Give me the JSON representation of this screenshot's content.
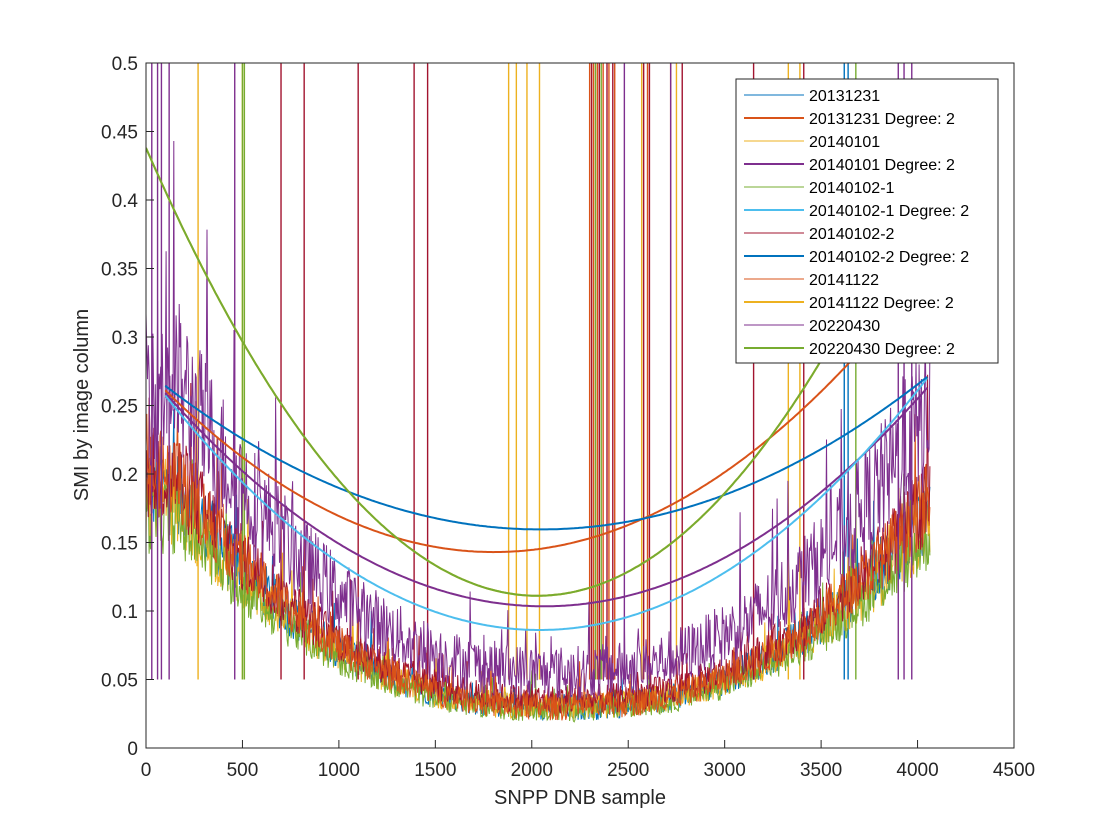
{
  "chart_data": {
    "type": "line",
    "title": "",
    "xlabel": "SNPP DNB sample",
    "ylabel": "SMI by image column",
    "xlim": [
      0,
      4500
    ],
    "ylim": [
      0,
      0.5
    ],
    "xticks": [
      0,
      500,
      1000,
      1500,
      2000,
      2500,
      3000,
      3500,
      4000,
      4500
    ],
    "yticks": [
      0,
      0.05,
      0.1,
      0.15,
      0.2,
      0.25,
      0.3,
      0.35,
      0.4,
      0.45,
      0.5
    ],
    "grid": false,
    "legend_position": "top-right",
    "series": [
      {
        "name": "20131231",
        "kind": "raw",
        "color": "#0072BD",
        "base": 0.03,
        "edge": 0.19,
        "noise": 0.01,
        "spikes": [
          3620,
          3640
        ]
      },
      {
        "name": "20131231 Degree: 2",
        "kind": "fit",
        "color": "#D95319",
        "coef": [
          0.2754,
          -0.0001468,
          4.07e-08
        ],
        "x_range": [
          100,
          4050
        ]
      },
      {
        "name": "20140101",
        "kind": "raw",
        "color": "#EDB120",
        "base": 0.03,
        "edge": 0.18,
        "noise": 0.01,
        "spikes": [
          270,
          500,
          1880,
          1920,
          1975,
          2040,
          2570,
          2750,
          3330,
          3390
        ]
      },
      {
        "name": "20140101 Degree: 2",
        "kind": "fit",
        "color": "#7E2F8E",
        "coef": [
          0.2754,
          -0.0001667,
          4.04e-08
        ],
        "x_range": [
          100,
          4050
        ]
      },
      {
        "name": "20140102-1",
        "kind": "raw",
        "color": "#77AC30",
        "base": 0.028,
        "edge": 0.17,
        "noise": 0.009,
        "spikes": [
          500,
          510,
          2330,
          2360,
          3680
        ]
      },
      {
        "name": "20140102-1 Degree: 2",
        "kind": "fit",
        "color": "#4DBEEE",
        "coef": [
          0.2754,
          -0.0001856,
          4.55e-08
        ],
        "x_range": [
          100,
          4050
        ]
      },
      {
        "name": "20140102-2",
        "kind": "raw",
        "color": "#A2142F",
        "base": 0.035,
        "edge": 0.2,
        "noise": 0.011,
        "spikes": [
          700,
          820,
          1100,
          1390,
          1460,
          2310,
          2350,
          2390,
          2420,
          2580,
          2610,
          2780,
          3150,
          3410
        ]
      },
      {
        "name": "20140102-2 Degree: 2",
        "kind": "fit",
        "color": "#0072BD",
        "coef": [
          0.2754,
          -0.0001133,
          2.77e-08
        ],
        "x_range": [
          100,
          4050
        ]
      },
      {
        "name": "20141122",
        "kind": "raw",
        "color": "#D95319",
        "base": 0.03,
        "edge": 0.2,
        "noise": 0.01,
        "spikes": [
          2300,
          2320,
          2340,
          2370,
          2400,
          2430,
          2600,
          2720
        ]
      },
      {
        "name": "20141122 Degree: 2",
        "kind": "fit",
        "color": "#EDB120",
        "coef": [
          0.438,
          -0.0003222,
          7.94e-08
        ],
        "x_range": [
          0,
          4050
        ]
      },
      {
        "name": "20220430",
        "kind": "raw",
        "color": "#7E2F8E",
        "base": 0.055,
        "edge": 0.27,
        "noise": 0.02,
        "spikes": [
          30,
          60,
          80,
          120,
          460,
          2480,
          2720,
          3900,
          3930,
          3970
        ]
      },
      {
        "name": "20220430 Degree: 2",
        "kind": "fit",
        "color": "#77AC30",
        "coef": [
          0.438,
          -0.0003222,
          7.94e-08
        ],
        "x_range": [
          0,
          4050
        ]
      }
    ]
  }
}
